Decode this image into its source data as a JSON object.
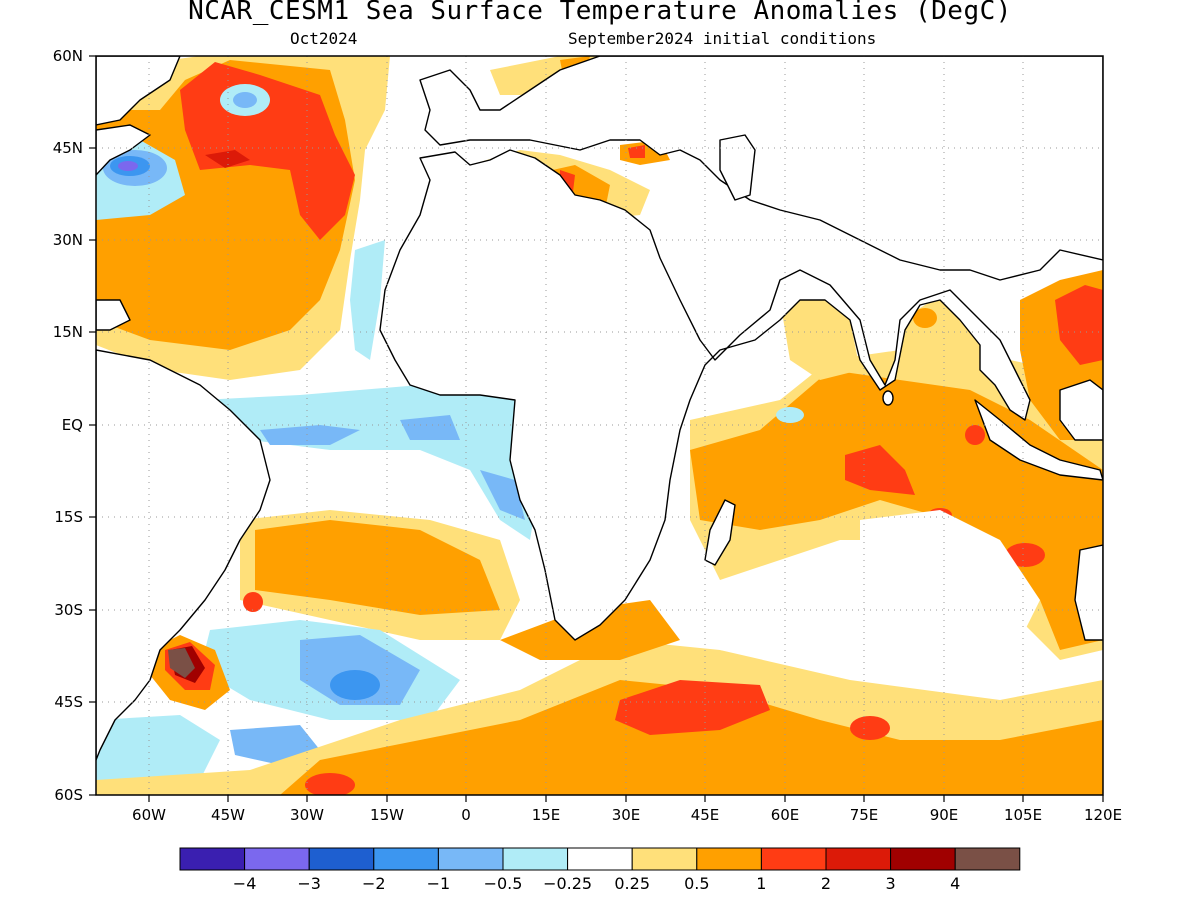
{
  "map": {
    "title": "NCAR_CESM1 Sea Surface Temperature Anomalies (DegC)",
    "subtitle_left": "Oct2024",
    "subtitle_right": "September2024 initial conditions",
    "lon_labels": [
      "60W",
      "45W",
      "30W",
      "15W",
      "0",
      "15E",
      "30E",
      "45E",
      "60E",
      "75E",
      "90E",
      "105E",
      "120E"
    ],
    "lat_labels": [
      "60N",
      "45N",
      "30N",
      "15N",
      "EQ",
      "15S",
      "30S",
      "45S",
      "60S"
    ],
    "extent": {
      "lon": [
        -70,
        120
      ],
      "lat": [
        -60,
        60
      ]
    },
    "grid": true
  },
  "colorbar": {
    "colors": [
      "#3a1fb0",
      "#7b68ee",
      "#1e5fd0",
      "#3c96f0",
      "#78b8f7",
      "#b0ecf7",
      "#ffffff",
      "#ffe07a",
      "#ffa000",
      "#ff3c14",
      "#dc1a08",
      "#a00000",
      "#7a5046"
    ],
    "labels": [
      "−4",
      "−3",
      "−2",
      "−1",
      "−0.5",
      "−0.25",
      "0.25",
      "0.5",
      "1",
      "2",
      "3",
      "4"
    ]
  }
}
